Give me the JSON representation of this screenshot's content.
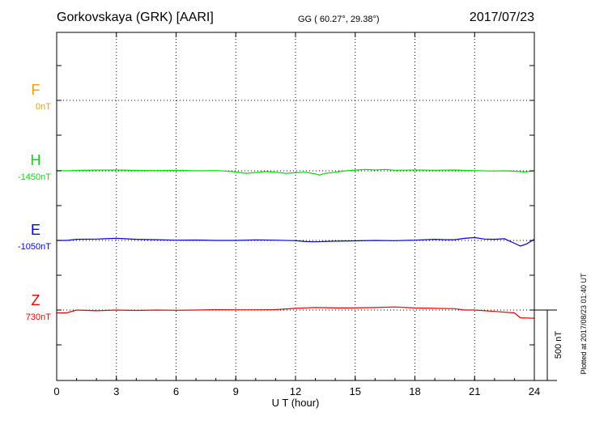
{
  "header": {
    "station": "Gorkovskaya (GRK)  [AARI]",
    "coords": "GG ( 60.27°,  29.38°)",
    "date": "2017/07/23"
  },
  "side_note": "Plotted at 2017/08/23 01:40 UT",
  "scale_label": "500 nT",
  "chart_data": {
    "type": "line",
    "xlabel": "U T (hour)",
    "xlim": [
      0,
      24
    ],
    "x_ticks": [
      "0",
      "3",
      "6",
      "9",
      "12",
      "15",
      "18",
      "21",
      "24"
    ],
    "scale_nT": 500,
    "grid": true,
    "series": [
      {
        "name": "F",
        "baseline_label": "0nT",
        "color": "#f0a000",
        "points": []
      },
      {
        "name": "H",
        "baseline_label": "-1450nT",
        "color": "#00dd00",
        "points": [
          [
            0,
            2
          ],
          [
            0.5,
            0
          ],
          [
            1,
            3
          ],
          [
            2,
            5
          ],
          [
            3,
            6
          ],
          [
            4,
            3
          ],
          [
            5,
            2
          ],
          [
            6,
            4
          ],
          [
            7,
            0
          ],
          [
            8,
            2
          ],
          [
            8.5,
            -2
          ],
          [
            9,
            -8
          ],
          [
            9.5,
            -18
          ],
          [
            10,
            -12
          ],
          [
            10.5,
            -5
          ],
          [
            11,
            -10
          ],
          [
            11.5,
            -18
          ],
          [
            12,
            -14
          ],
          [
            12.5,
            -10
          ],
          [
            13,
            -22
          ],
          [
            13.2,
            -30
          ],
          [
            13.5,
            -18
          ],
          [
            14,
            -10
          ],
          [
            14.5,
            0
          ],
          [
            15,
            5
          ],
          [
            15.5,
            10
          ],
          [
            16,
            6
          ],
          [
            16.5,
            10
          ],
          [
            17,
            4
          ],
          [
            18,
            6
          ],
          [
            19,
            4
          ],
          [
            20,
            6
          ],
          [
            20.5,
            3
          ],
          [
            21,
            2
          ],
          [
            22,
            -2
          ],
          [
            22.5,
            0
          ],
          [
            23,
            -3
          ],
          [
            23.5,
            -8
          ],
          [
            24,
            0
          ]
        ]
      },
      {
        "name": "E",
        "baseline_label": "-1050nT",
        "color": "#0000dd",
        "points": [
          [
            0,
            0
          ],
          [
            0.5,
            0
          ],
          [
            1,
            8
          ],
          [
            2,
            10
          ],
          [
            3,
            15
          ],
          [
            4,
            8
          ],
          [
            5,
            5
          ],
          [
            6,
            2
          ],
          [
            7,
            3
          ],
          [
            8,
            0
          ],
          [
            9,
            0
          ],
          [
            10,
            4
          ],
          [
            11,
            2
          ],
          [
            12,
            -2
          ],
          [
            12.5,
            -8
          ],
          [
            13,
            -10
          ],
          [
            14,
            -5
          ],
          [
            15,
            -3
          ],
          [
            16,
            0
          ],
          [
            17,
            -2
          ],
          [
            18,
            2
          ],
          [
            19,
            8
          ],
          [
            19.5,
            5
          ],
          [
            20,
            5
          ],
          [
            20.5,
            15
          ],
          [
            21,
            20
          ],
          [
            21.5,
            10
          ],
          [
            22,
            8
          ],
          [
            22.5,
            12
          ],
          [
            23,
            -20
          ],
          [
            23.3,
            -40
          ],
          [
            23.6,
            -25
          ],
          [
            24,
            8
          ]
        ]
      },
      {
        "name": "Z",
        "baseline_label": "730nT",
        "color": "#ee0000",
        "points": [
          [
            0,
            -20
          ],
          [
            0.5,
            -20
          ],
          [
            1,
            0
          ],
          [
            2,
            -5
          ],
          [
            3,
            0
          ],
          [
            4,
            -3
          ],
          [
            5,
            0
          ],
          [
            6,
            -2
          ],
          [
            7,
            0
          ],
          [
            8,
            3
          ],
          [
            9,
            2
          ],
          [
            10,
            2
          ],
          [
            11,
            3
          ],
          [
            12,
            12
          ],
          [
            13,
            18
          ],
          [
            14,
            15
          ],
          [
            15,
            15
          ],
          [
            16,
            18
          ],
          [
            17,
            22
          ],
          [
            18,
            15
          ],
          [
            19,
            12
          ],
          [
            20,
            10
          ],
          [
            20.5,
            0
          ],
          [
            21,
            0
          ],
          [
            22,
            -10
          ],
          [
            23,
            -20
          ],
          [
            23.3,
            -55
          ],
          [
            24,
            -58
          ]
        ]
      }
    ]
  }
}
